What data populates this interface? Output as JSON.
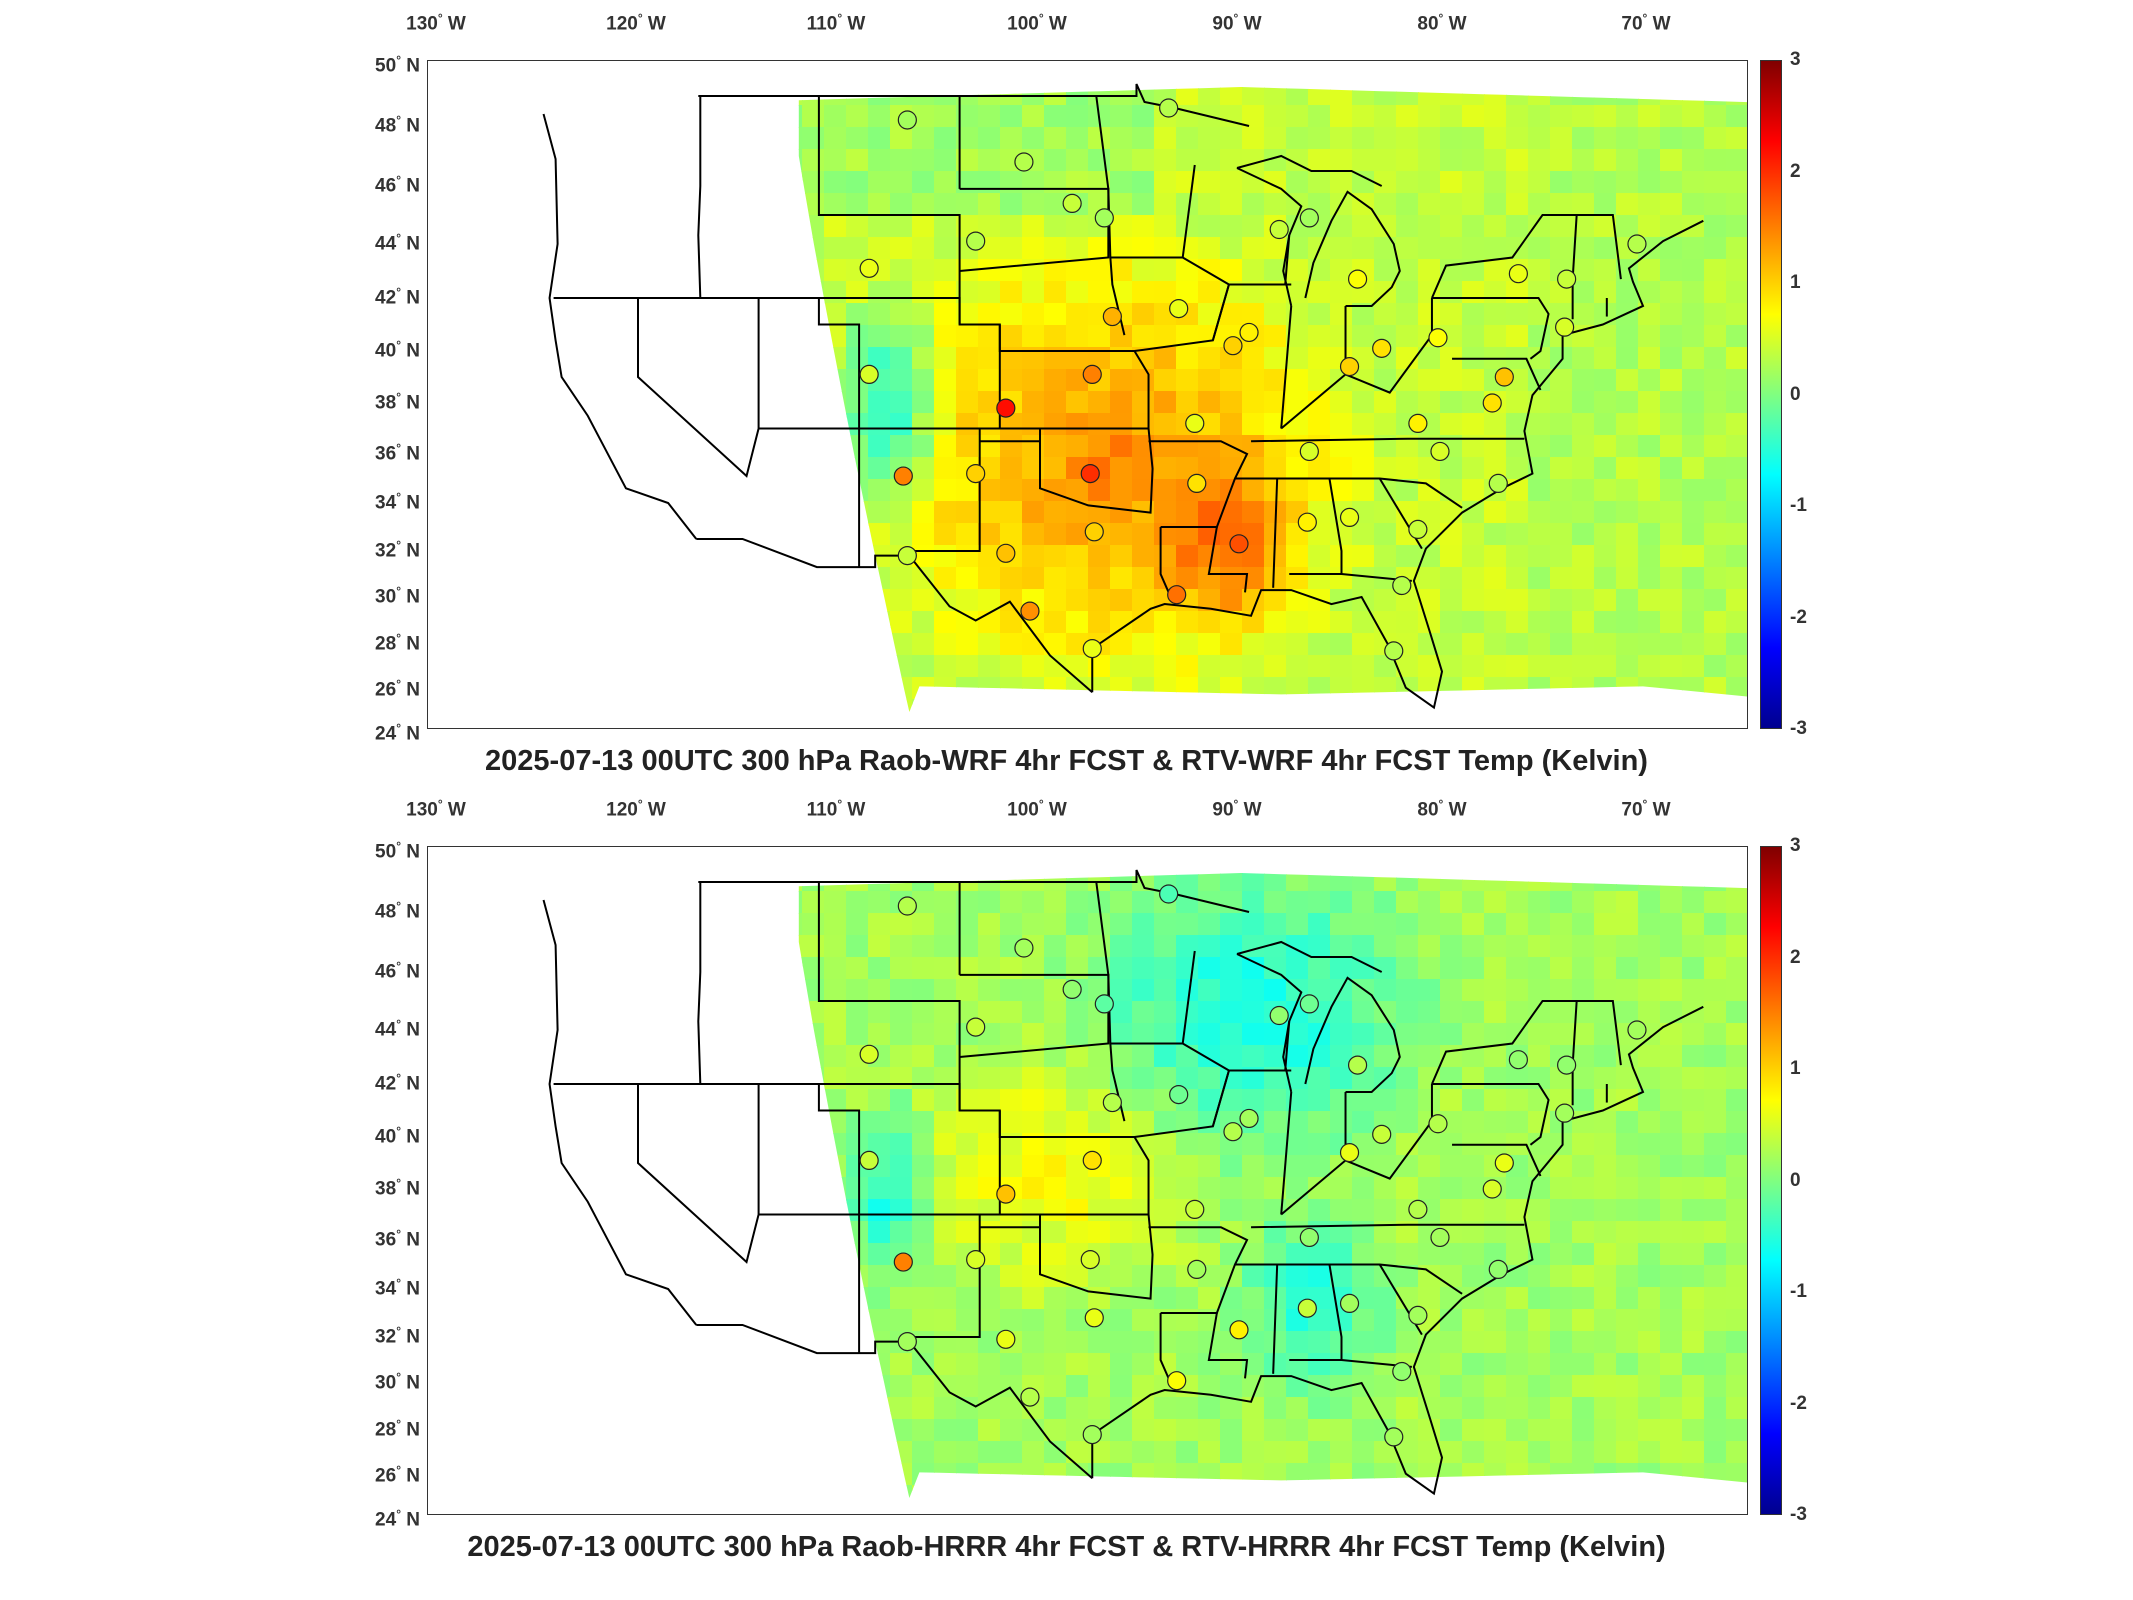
{
  "panels": [
    {
      "title": "2025-07-13 00UTC 300 hPa Raob-WRF 4hr FCST & RTV-WRF 4hr FCST Temp (Kelvin)",
      "field_tone": "warm",
      "lon_labels": [
        "130",
        "120",
        "110",
        "100",
        "90",
        "80",
        "70"
      ],
      "lon_suffix": "W",
      "lat_labels": [
        "50",
        "48",
        "46",
        "44",
        "42",
        "40",
        "38",
        "36",
        "34",
        "32",
        "30",
        "28",
        "26",
        "24"
      ],
      "lat_suffix": "N",
      "colorbar_ticks": [
        "3",
        "2",
        "1",
        "0",
        "-1",
        "-2",
        "-3"
      ],
      "stations": [
        {
          "lon": -106.6,
          "lat": 48.2,
          "value": 0.2
        },
        {
          "lon": -100.8,
          "lat": 46.8,
          "value": 0.3
        },
        {
          "lon": -96.8,
          "lat": 44.9,
          "value": 0.2
        },
        {
          "lon": -93.6,
          "lat": 48.6,
          "value": 0.3
        },
        {
          "lon": -98.4,
          "lat": 45.4,
          "value": 0.4
        },
        {
          "lon": -103.2,
          "lat": 44.1,
          "value": 0.3
        },
        {
          "lon": -108.5,
          "lat": 43.1,
          "value": 0.6
        },
        {
          "lon": -96.4,
          "lat": 41.3,
          "value": 1.2
        },
        {
          "lon": -93.1,
          "lat": 41.6,
          "value": 0.6
        },
        {
          "lon": -90.4,
          "lat": 40.2,
          "value": 1.0
        },
        {
          "lon": -97.4,
          "lat": 39.1,
          "value": 1.5
        },
        {
          "lon": -101.7,
          "lat": 37.8,
          "value": 2.2
        },
        {
          "lon": -108.5,
          "lat": 39.1,
          "value": 0.5
        },
        {
          "lon": -106.8,
          "lat": 35.1,
          "value": 1.5
        },
        {
          "lon": -103.2,
          "lat": 35.2,
          "value": 1.0
        },
        {
          "lon": -97.5,
          "lat": 35.2,
          "value": 2.0
        },
        {
          "lon": -92.3,
          "lat": 37.2,
          "value": 0.6
        },
        {
          "lon": -92.2,
          "lat": 34.8,
          "value": 0.9
        },
        {
          "lon": -97.3,
          "lat": 32.8,
          "value": 1.0
        },
        {
          "lon": -101.7,
          "lat": 31.9,
          "value": 1.1
        },
        {
          "lon": -106.6,
          "lat": 31.8,
          "value": 0.4
        },
        {
          "lon": -100.5,
          "lat": 29.4,
          "value": 1.4
        },
        {
          "lon": -97.4,
          "lat": 27.8,
          "value": 0.6
        },
        {
          "lon": -93.2,
          "lat": 30.1,
          "value": 1.6
        },
        {
          "lon": -90.1,
          "lat": 32.3,
          "value": 1.8
        },
        {
          "lon": -86.7,
          "lat": 33.2,
          "value": 0.8
        },
        {
          "lon": -84.6,
          "lat": 33.4,
          "value": 0.6
        },
        {
          "lon": -86.6,
          "lat": 36.1,
          "value": 0.5
        },
        {
          "lon": -83.0,
          "lat": 40.1,
          "value": 0.9
        },
        {
          "lon": -84.6,
          "lat": 39.4,
          "value": 1.0
        },
        {
          "lon": -81.2,
          "lat": 37.2,
          "value": 0.8
        },
        {
          "lon": -80.1,
          "lat": 36.1,
          "value": 0.5
        },
        {
          "lon": -77.2,
          "lat": 34.8,
          "value": 0.3
        },
        {
          "lon": -81.2,
          "lat": 32.9,
          "value": 0.4
        },
        {
          "lon": -82.0,
          "lat": 30.5,
          "value": 0.3
        },
        {
          "lon": -82.4,
          "lat": 27.7,
          "value": 0.3
        },
        {
          "lon": -77.5,
          "lat": 38.0,
          "value": 0.9
        },
        {
          "lon": -76.9,
          "lat": 39.0,
          "value": 1.1
        },
        {
          "lon": -80.2,
          "lat": 40.5,
          "value": 0.7
        },
        {
          "lon": -73.9,
          "lat": 40.9,
          "value": 0.5
        },
        {
          "lon": -73.8,
          "lat": 42.7,
          "value": 0.4
        },
        {
          "lon": -76.2,
          "lat": 42.9,
          "value": 0.6
        },
        {
          "lon": -70.3,
          "lat": 44.0,
          "value": 0.3
        },
        {
          "lon": -84.2,
          "lat": 42.7,
          "value": 0.7
        },
        {
          "lon": -86.6,
          "lat": 44.9,
          "value": 0.2
        },
        {
          "lon": -88.1,
          "lat": 44.5,
          "value": 0.4
        },
        {
          "lon": -89.6,
          "lat": 40.7,
          "value": 0.8
        }
      ]
    },
    {
      "title": "2025-07-13 00UTC 300 hPa Raob-HRRR 4hr FCST & RTV-HRRR 4hr FCST Temp (Kelvin)",
      "field_tone": "cool",
      "lon_labels": [
        "130",
        "120",
        "110",
        "100",
        "90",
        "80",
        "70"
      ],
      "lon_suffix": "W",
      "lat_labels": [
        "50",
        "48",
        "46",
        "44",
        "42",
        "40",
        "38",
        "36",
        "34",
        "32",
        "30",
        "28",
        "26",
        "24"
      ],
      "lat_suffix": "N",
      "colorbar_ticks": [
        "3",
        "2",
        "1",
        "0",
        "-1",
        "-2",
        "-3"
      ],
      "stations": [
        {
          "lon": -106.6,
          "lat": 48.2,
          "value": 0.3
        },
        {
          "lon": -100.8,
          "lat": 46.8,
          "value": 0.2
        },
        {
          "lon": -96.8,
          "lat": 44.9,
          "value": -0.2
        },
        {
          "lon": -93.6,
          "lat": 48.6,
          "value": -0.3
        },
        {
          "lon": -98.4,
          "lat": 45.4,
          "value": 0.1
        },
        {
          "lon": -103.2,
          "lat": 44.1,
          "value": 0.4
        },
        {
          "lon": -108.5,
          "lat": 43.1,
          "value": 0.5
        },
        {
          "lon": -96.4,
          "lat": 41.3,
          "value": 0.3
        },
        {
          "lon": -93.1,
          "lat": 41.6,
          "value": -0.1
        },
        {
          "lon": -90.4,
          "lat": 40.2,
          "value": 0.3
        },
        {
          "lon": -97.4,
          "lat": 39.1,
          "value": 0.9
        },
        {
          "lon": -101.7,
          "lat": 37.8,
          "value": 1.1
        },
        {
          "lon": -108.5,
          "lat": 39.1,
          "value": 0.4
        },
        {
          "lon": -106.8,
          "lat": 35.1,
          "value": 1.5
        },
        {
          "lon": -103.2,
          "lat": 35.2,
          "value": 0.5
        },
        {
          "lon": -97.5,
          "lat": 35.2,
          "value": 0.5
        },
        {
          "lon": -92.3,
          "lat": 37.2,
          "value": 0.4
        },
        {
          "lon": -92.2,
          "lat": 34.8,
          "value": 0.2
        },
        {
          "lon": -97.3,
          "lat": 32.8,
          "value": 0.6
        },
        {
          "lon": -101.7,
          "lat": 31.9,
          "value": 0.6
        },
        {
          "lon": -106.6,
          "lat": 31.8,
          "value": 0.2
        },
        {
          "lon": -100.5,
          "lat": 29.4,
          "value": 0.3
        },
        {
          "lon": -97.4,
          "lat": 27.8,
          "value": 0.2
        },
        {
          "lon": -93.2,
          "lat": 30.1,
          "value": 0.7
        },
        {
          "lon": -90.1,
          "lat": 32.3,
          "value": 0.8
        },
        {
          "lon": -86.7,
          "lat": 33.2,
          "value": 0.4
        },
        {
          "lon": -84.6,
          "lat": 33.4,
          "value": 0.2
        },
        {
          "lon": -86.6,
          "lat": 36.1,
          "value": 0.1
        },
        {
          "lon": -83.0,
          "lat": 40.1,
          "value": 0.4
        },
        {
          "lon": -84.6,
          "lat": 39.4,
          "value": 0.6
        },
        {
          "lon": -81.2,
          "lat": 37.2,
          "value": 0.3
        },
        {
          "lon": -80.1,
          "lat": 36.1,
          "value": 0.2
        },
        {
          "lon": -77.2,
          "lat": 34.8,
          "value": 0.1
        },
        {
          "lon": -81.2,
          "lat": 32.9,
          "value": 0.2
        },
        {
          "lon": -82.0,
          "lat": 30.5,
          "value": 0.1
        },
        {
          "lon": -82.4,
          "lat": 27.7,
          "value": 0.2
        },
        {
          "lon": -77.5,
          "lat": 38.0,
          "value": 0.5
        },
        {
          "lon": -76.9,
          "lat": 39.0,
          "value": 0.6
        },
        {
          "lon": -80.2,
          "lat": 40.5,
          "value": 0.3
        },
        {
          "lon": -73.9,
          "lat": 40.9,
          "value": 0.2
        },
        {
          "lon": -73.8,
          "lat": 42.7,
          "value": 0.1
        },
        {
          "lon": -76.2,
          "lat": 42.9,
          "value": 0.1
        },
        {
          "lon": -70.3,
          "lat": 44.0,
          "value": 0.2
        },
        {
          "lon": -84.2,
          "lat": 42.7,
          "value": 0.3
        },
        {
          "lon": -86.6,
          "lat": 44.9,
          "value": -0.1
        },
        {
          "lon": -88.1,
          "lat": 44.5,
          "value": 0.1
        },
        {
          "lon": -89.6,
          "lat": 40.7,
          "value": 0.2
        }
      ]
    }
  ]
}
